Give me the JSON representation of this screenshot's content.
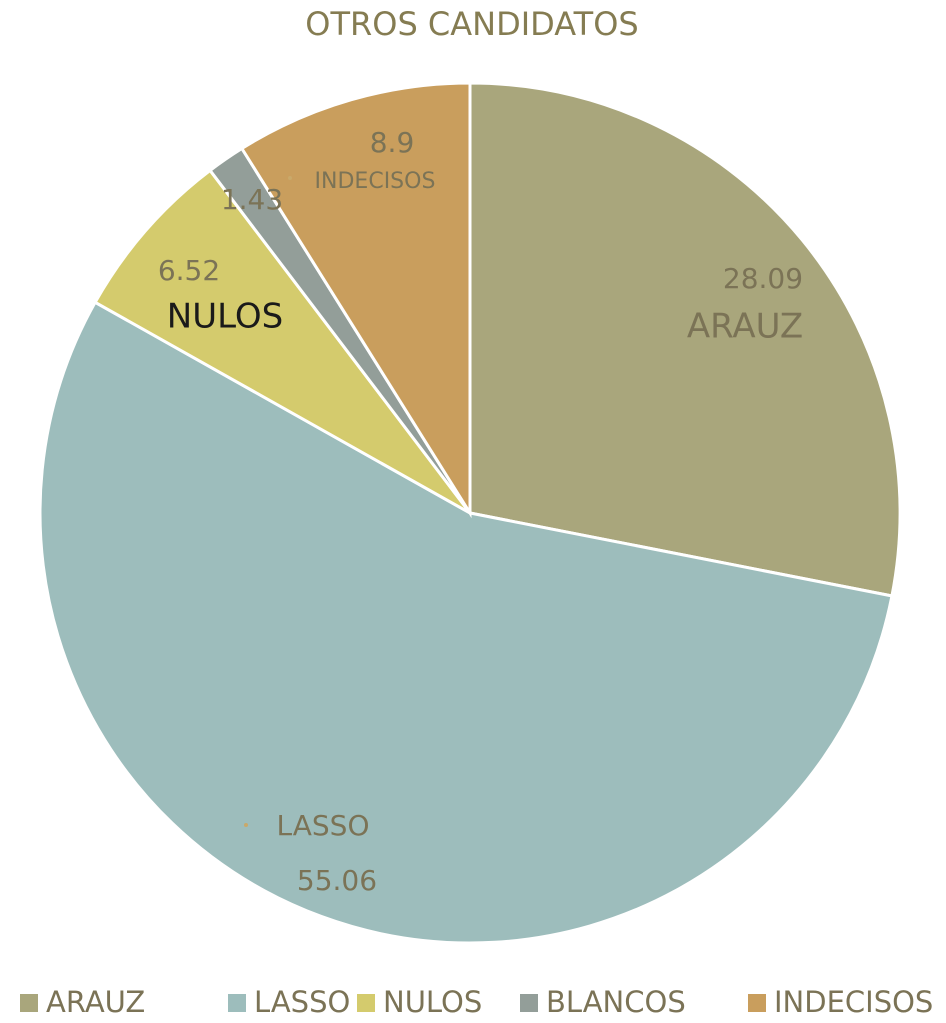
{
  "chart_data": {
    "type": "pie",
    "title": "OTROS CANDIDATOS",
    "categories": [
      "ARAUZ",
      "LASSO",
      "NULOS",
      "BLANCOS",
      "INDECISOS"
    ],
    "values": [
      28.09,
      55.06,
      6.52,
      1.43,
      8.9
    ],
    "colors": [
      "#a9a67c",
      "#9dbdbc",
      "#d4cb6d",
      "#939e99",
      "#c99e5d"
    ],
    "legend": "bottom"
  }
}
